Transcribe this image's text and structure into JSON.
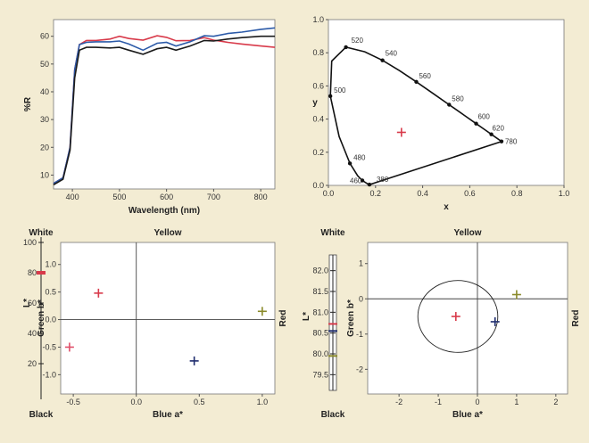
{
  "colors": {
    "red": "#d83a4a",
    "blue": "#2c5aa8",
    "black": "#1a1a1a",
    "olive": "#8a8a2a",
    "navy": "#1f2d6e",
    "pink": "#e0506a"
  },
  "chart_data": [
    {
      "type": "line",
      "xlabel": "Wavelength (nm)",
      "ylabel": "%R",
      "xlim": [
        360,
        830
      ],
      "ylim": [
        5,
        66
      ],
      "xticks": [
        400,
        500,
        600,
        700,
        800
      ],
      "yticks": [
        10,
        20,
        30,
        40,
        50,
        60
      ],
      "series": [
        {
          "color": "red",
          "x": [
            360,
            380,
            395,
            405,
            415,
            430,
            450,
            480,
            500,
            520,
            550,
            580,
            600,
            620,
            650,
            680,
            700,
            730,
            760,
            800,
            830
          ],
          "y": [
            7,
            9,
            20,
            48,
            57,
            58.5,
            58.5,
            59,
            60,
            59.2,
            58.6,
            60.2,
            59.6,
            58.4,
            58.5,
            59.5,
            58.6,
            57.8,
            57.2,
            56.5,
            56
          ]
        },
        {
          "color": "blue",
          "x": [
            360,
            380,
            395,
            405,
            415,
            430,
            450,
            480,
            500,
            520,
            550,
            580,
            600,
            620,
            650,
            680,
            700,
            730,
            760,
            800,
            830
          ],
          "y": [
            7,
            9,
            20,
            48,
            57,
            57.8,
            58,
            58,
            58.3,
            57.2,
            55,
            57.5,
            57.8,
            56.5,
            58,
            60.2,
            60,
            61,
            61.5,
            62.5,
            63
          ]
        },
        {
          "color": "black",
          "x": [
            360,
            380,
            395,
            405,
            415,
            430,
            450,
            480,
            500,
            520,
            550,
            580,
            600,
            620,
            650,
            680,
            700,
            730,
            760,
            800,
            830
          ],
          "y": [
            6.5,
            8.5,
            19,
            45,
            55,
            56,
            56,
            55.8,
            56,
            55,
            53.5,
            55.5,
            56,
            55,
            56.5,
            58.5,
            58.3,
            59,
            59.5,
            60,
            60
          ]
        }
      ]
    },
    {
      "type": "line",
      "xlabel": "x",
      "ylabel": "y",
      "xlim": [
        0,
        1
      ],
      "ylim": [
        0,
        1
      ],
      "xticks": [
        "0.0",
        "0.2",
        "0.4",
        "0.6",
        "0.8",
        "1.0"
      ],
      "yticks": [
        "0.0",
        "0.2",
        "0.4",
        "0.6",
        "0.8",
        "1.0"
      ],
      "locus_labels": [
        "380",
        "460",
        "480",
        "500",
        "520",
        "540",
        "560",
        "580",
        "600",
        "620",
        "780"
      ],
      "locus_points": [
        [
          0.1741,
          0.005
        ],
        [
          0.144,
          0.0297
        ],
        [
          0.0913,
          0.1327
        ],
        [
          0.0082,
          0.5384
        ],
        [
          0.0743,
          0.8338
        ],
        [
          0.2296,
          0.7543
        ],
        [
          0.3731,
          0.6245
        ],
        [
          0.5125,
          0.4866
        ],
        [
          0.627,
          0.3725
        ],
        [
          0.6915,
          0.3083
        ],
        [
          0.7347,
          0.2653
        ]
      ],
      "marker": {
        "x": 0.31,
        "y": 0.32,
        "color": "red"
      }
    },
    {
      "type": "scatter",
      "top_label": "Yellow",
      "right_label": "Red",
      "left_top_label": "White",
      "left_bottom_label": "Black",
      "xlabel": "Blue a*",
      "ylabel": "Green b*",
      "xlim": [
        -0.6,
        1.1
      ],
      "ylim": [
        -1.35,
        1.4
      ],
      "xticks": [
        "-0.5",
        "0.0",
        "0.5",
        "1.0"
      ],
      "yticks": [
        "1.0",
        "0.5",
        "0.0",
        "-0.5",
        "-1.0"
      ],
      "points": [
        {
          "x": -0.3,
          "y": 0.48,
          "color": "red"
        },
        {
          "x": -0.53,
          "y": -0.5,
          "color": "pink"
        },
        {
          "x": 0.46,
          "y": -0.75,
          "color": "navy"
        },
        {
          "x": 1.0,
          "y": 0.15,
          "color": "olive"
        }
      ],
      "lstar": {
        "ticks": [
          "100",
          "80",
          "60",
          "40",
          "20"
        ],
        "range": [
          0,
          100
        ],
        "ylabel": "L*",
        "marker": 80
      }
    },
    {
      "type": "scatter",
      "top_label": "Yellow",
      "right_label": "Red",
      "left_top_label": "White",
      "left_bottom_label": "Black",
      "xlabel": "Blue a*",
      "ylabel": "Green b*",
      "xlim": [
        -2.8,
        2.3
      ],
      "ylim": [
        -2.7,
        1.6
      ],
      "xticks": [
        "-2",
        "-1",
        "0",
        "1",
        "2"
      ],
      "yticks": [
        "1",
        "0",
        "-1",
        "-2"
      ],
      "circle_radius": 1.02,
      "circle_center": [
        -0.5,
        -0.5
      ],
      "points": [
        {
          "x": -0.55,
          "y": -0.5,
          "color": "red"
        },
        {
          "x": 0.45,
          "y": -0.65,
          "color": "navy"
        },
        {
          "x": 1.0,
          "y": 0.12,
          "color": "olive"
        }
      ],
      "lstar": {
        "ticks": [
          "82.0",
          "81.5",
          "81.0",
          "80.5",
          "80.0",
          "79.5"
        ],
        "range": [
          79.25,
          82.25
        ],
        "ylabel": "L*",
        "markers": [
          {
            "v": 80.72,
            "color": "red"
          },
          {
            "v": 80.55,
            "color": "navy"
          },
          {
            "v": 79.95,
            "color": "olive"
          }
        ]
      }
    }
  ]
}
